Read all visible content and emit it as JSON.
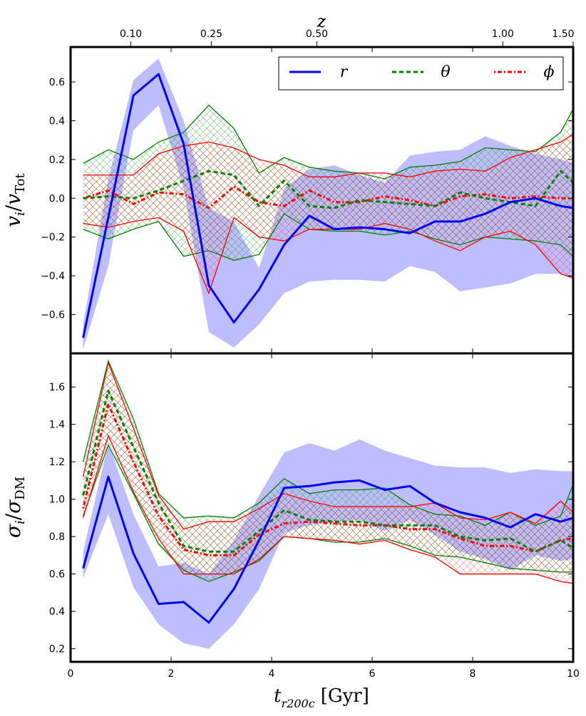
{
  "chart_data": {
    "type": "line",
    "top_axis": {
      "label": "z",
      "tick_labels": [
        "0.10",
        "0.25",
        "0.50",
        "1.00",
        "1.50"
      ],
      "tick_positions_gyr": [
        1.2,
        2.8,
        4.9,
        8.6,
        10.0
      ]
    },
    "shared_x": {
      "label": "t",
      "label_subscript": "r200c",
      "label_unit": "[Gyr]",
      "xlim": [
        0,
        10
      ],
      "ticks": [
        0,
        2,
        4,
        6,
        8,
        10
      ],
      "x": [
        0.25,
        0.75,
        1.25,
        1.75,
        2.25,
        2.75,
        3.25,
        3.75,
        4.25,
        4.75,
        5.25,
        5.75,
        6.25,
        6.75,
        7.25,
        7.75,
        8.25,
        8.75,
        9.25,
        9.75,
        10.0
      ]
    },
    "legend": {
      "placement": "top-right",
      "entries": [
        {
          "label": "r",
          "color": "#0000ff",
          "style": "solid"
        },
        {
          "label": "θ",
          "color": "#008000",
          "style": "dashed"
        },
        {
          "label": "ϕ",
          "color": "#ff0000",
          "style": "dotted"
        }
      ]
    },
    "colors": {
      "r": "#0000ff",
      "theta": "#008000",
      "phi": "#ff0000",
      "r_band": "#b3b3ff"
    },
    "panels": [
      {
        "ylabel": "v_i / v_Tot",
        "ylabel_main": "v",
        "ylabel_sub_i": "i",
        "ylabel_den": "v",
        "ylabel_den_sub": "Tot",
        "ylim": [
          -0.8,
          0.78
        ],
        "yticks": [
          -0.6,
          -0.4,
          -0.2,
          0.0,
          0.2,
          0.4,
          0.6
        ],
        "ytick_labels": [
          "−0.6",
          "−0.4",
          "−0.2",
          "0.0",
          "0.2",
          "0.4",
          "0.6"
        ],
        "series": [
          {
            "name": "r",
            "values": [
              -0.72,
              -0.1,
              0.53,
              0.64,
              0.28,
              -0.45,
              -0.64,
              -0.47,
              -0.24,
              -0.09,
              -0.16,
              -0.15,
              -0.16,
              -0.18,
              -0.12,
              -0.12,
              -0.08,
              -0.02,
              0.0,
              -0.04,
              -0.05
            ],
            "band_upper": [
              -0.65,
              0.1,
              0.61,
              0.72,
              0.4,
              -0.05,
              -0.12,
              -0.36,
              0.05,
              0.15,
              0.17,
              0.12,
              0.08,
              0.22,
              0.24,
              0.25,
              0.32,
              0.27,
              0.23,
              0.2,
              0.18
            ],
            "band_lower": [
              -0.78,
              -0.35,
              0.35,
              0.48,
              0.05,
              -0.69,
              -0.77,
              -0.65,
              -0.49,
              -0.43,
              -0.42,
              -0.42,
              -0.43,
              -0.35,
              -0.38,
              -0.48,
              -0.46,
              -0.44,
              -0.39,
              -0.39,
              -0.42
            ]
          },
          {
            "name": "θ",
            "values": [
              0.0,
              0.01,
              0.0,
              0.04,
              0.09,
              0.14,
              0.12,
              -0.04,
              0.09,
              -0.04,
              -0.05,
              -0.01,
              -0.02,
              -0.03,
              -0.04,
              0.03,
              0.0,
              -0.02,
              -0.04,
              0.14,
              0.08
            ],
            "band_upper": [
              0.18,
              0.25,
              0.2,
              0.29,
              0.34,
              0.48,
              0.36,
              0.13,
              0.21,
              0.16,
              0.14,
              0.13,
              0.1,
              0.16,
              0.17,
              0.19,
              0.26,
              0.25,
              0.24,
              0.34,
              0.46
            ],
            "band_lower": [
              -0.16,
              -0.21,
              -0.16,
              -0.12,
              -0.3,
              -0.27,
              -0.32,
              -0.29,
              -0.08,
              -0.16,
              -0.17,
              -0.17,
              -0.19,
              -0.17,
              -0.21,
              -0.24,
              -0.2,
              -0.21,
              -0.22,
              -0.24,
              -0.3
            ]
          },
          {
            "name": "ϕ",
            "values": [
              0.0,
              0.04,
              -0.03,
              0.03,
              0.02,
              -0.05,
              0.06,
              -0.02,
              -0.04,
              0.04,
              -0.02,
              -0.02,
              0.01,
              -0.01,
              -0.04,
              0.01,
              0.02,
              0.0,
              0.01,
              0.0,
              0.0
            ],
            "band_upper": [
              0.12,
              0.12,
              0.12,
              0.23,
              0.27,
              0.29,
              0.26,
              0.2,
              0.17,
              0.11,
              0.11,
              0.13,
              0.13,
              0.11,
              0.14,
              0.15,
              0.14,
              0.21,
              0.25,
              0.29,
              0.33
            ],
            "band_lower": [
              -0.13,
              -0.15,
              -0.12,
              -0.1,
              -0.17,
              -0.49,
              -0.1,
              -0.2,
              -0.22,
              -0.16,
              -0.16,
              -0.16,
              -0.13,
              -0.16,
              -0.22,
              -0.27,
              -0.2,
              -0.17,
              -0.24,
              -0.39,
              -0.41
            ]
          }
        ]
      },
      {
        "ylabel": "σ_i / σ_DM",
        "ylabel_main": "σ",
        "ylabel_sub_i": "i",
        "ylabel_den": "σ",
        "ylabel_den_sub": "DM",
        "ylim": [
          0.13,
          1.78
        ],
        "yticks": [
          0.2,
          0.4,
          0.6,
          0.8,
          1.0,
          1.2,
          1.4,
          1.6
        ],
        "ytick_labels": [
          "0.2",
          "0.4",
          "0.6",
          "0.8",
          "1.0",
          "1.2",
          "1.4",
          "1.6"
        ],
        "series": [
          {
            "name": "r",
            "values": [
              0.63,
              1.12,
              0.71,
              0.44,
              0.45,
              0.34,
              0.52,
              0.78,
              1.06,
              1.07,
              1.09,
              1.1,
              1.05,
              1.07,
              0.98,
              0.93,
              0.9,
              0.85,
              0.92,
              0.88,
              0.9
            ],
            "band_upper": [
              0.72,
              1.3,
              0.92,
              0.64,
              0.66,
              0.6,
              0.78,
              1.02,
              1.25,
              1.3,
              1.26,
              1.32,
              1.26,
              1.22,
              1.18,
              1.17,
              1.17,
              1.14,
              1.16,
              1.15,
              1.15
            ],
            "band_lower": [
              0.58,
              0.92,
              0.53,
              0.33,
              0.23,
              0.2,
              0.33,
              0.52,
              0.82,
              0.86,
              0.88,
              0.89,
              0.83,
              0.89,
              0.81,
              0.72,
              0.68,
              0.62,
              0.7,
              0.67,
              0.68
            ]
          },
          {
            "name": "θ",
            "values": [
              1.02,
              1.58,
              1.28,
              0.98,
              0.75,
              0.72,
              0.72,
              0.83,
              0.94,
              0.89,
              0.88,
              0.88,
              0.86,
              0.86,
              0.86,
              0.8,
              0.78,
              0.79,
              0.72,
              0.78,
              0.74
            ],
            "band_upper": [
              1.2,
              1.74,
              1.43,
              1.03,
              0.9,
              0.91,
              0.9,
              0.98,
              1.11,
              1.03,
              1.05,
              1.05,
              1.06,
              0.97,
              0.92,
              0.91,
              0.86,
              0.93,
              0.86,
              0.91,
              1.08
            ],
            "band_lower": [
              0.91,
              1.29,
              1.03,
              0.76,
              0.62,
              0.56,
              0.61,
              0.67,
              0.8,
              0.79,
              0.77,
              0.77,
              0.79,
              0.75,
              0.7,
              0.69,
              0.66,
              0.63,
              0.62,
              0.61,
              0.61
            ]
          },
          {
            "name": "ϕ",
            "values": [
              0.95,
              1.51,
              1.2,
              0.91,
              0.73,
              0.7,
              0.7,
              0.81,
              0.87,
              0.88,
              0.87,
              0.86,
              0.86,
              0.84,
              0.84,
              0.79,
              0.75,
              0.75,
              0.72,
              0.78,
              0.79
            ],
            "band_upper": [
              1.12,
              1.73,
              1.38,
              1.02,
              0.84,
              0.88,
              0.88,
              0.95,
              1.03,
              0.99,
              0.96,
              0.96,
              0.96,
              0.96,
              0.98,
              0.9,
              0.89,
              0.93,
              0.87,
              0.99,
              0.93
            ],
            "band_lower": [
              0.9,
              1.34,
              1.04,
              0.79,
              0.6,
              0.6,
              0.6,
              0.68,
              0.8,
              0.79,
              0.78,
              0.76,
              0.78,
              0.73,
              0.69,
              0.6,
              0.6,
              0.6,
              0.6,
              0.56,
              0.55
            ]
          }
        ]
      }
    ]
  }
}
